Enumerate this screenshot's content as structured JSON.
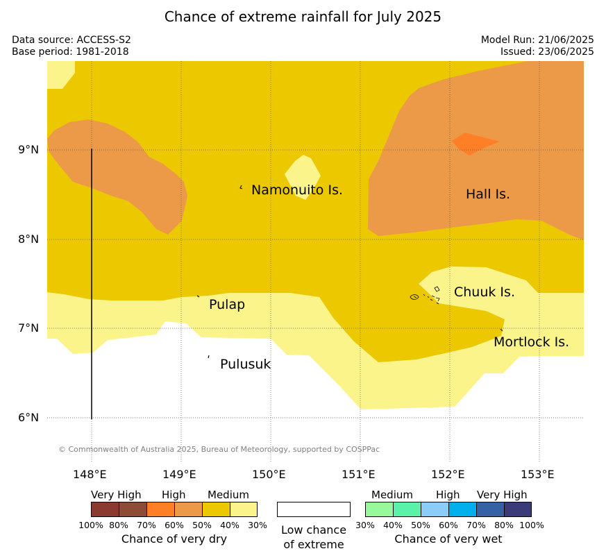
{
  "header": {
    "title": "Chance of extreme rainfall for July 2025",
    "data_source": "Data source: ACCESS-S2",
    "base_period": "Base period: 1981-2018",
    "model_run": "Model Run: 21/06/2025",
    "issued": "Issued: 23/06/2025"
  },
  "map": {
    "lat_ticks": [
      "9°N",
      "8°N",
      "7°N",
      "6°N"
    ],
    "lon_ticks": [
      "148°E",
      "149°E",
      "150°E",
      "151°E",
      "152°E",
      "153°E"
    ],
    "places": {
      "namonuito": "Namonuito Is.",
      "hall": "Hall Is.",
      "pulap": "Pulap",
      "chuuk": "Chuuk Is.",
      "mortlock": "Mortlock Is.",
      "pulusuk": "Pulusuk"
    },
    "copyright": "© Commonwealth of Australia 2025, Bureau of Meteorology, supported by COSPPac",
    "colors": {
      "medium_dry": "#ecc800",
      "low_dry": "#fbf48b",
      "high_dry_light": "#ec9a47",
      "high_dry": "#ff7f27",
      "ocean_nochance": "#ffffff"
    }
  },
  "legend": {
    "dry": {
      "categories": [
        "Very High",
        "High",
        "Medium"
      ],
      "ticks": [
        "100%",
        "80%",
        "70%",
        "60%",
        "50%",
        "40%",
        "30%"
      ],
      "colors": [
        "#8b3a2f",
        "#8c4c35",
        "#ff7f27",
        "#ec9a47",
        "#ecc800",
        "#fbf48b"
      ],
      "caption": "Chance of very dry"
    },
    "low": {
      "caption_line1": "Low chance",
      "caption_line2": "of extreme",
      "color": "#ffffff"
    },
    "wet": {
      "categories": [
        "Medium",
        "High",
        "Very High"
      ],
      "ticks": [
        "30%",
        "40%",
        "50%",
        "60%",
        "70%",
        "80%",
        "100%"
      ],
      "colors": [
        "#98f99a",
        "#5af1a9",
        "#8bcdf8",
        "#00b0ec",
        "#3562a4",
        "#3a3b78"
      ],
      "caption": "Chance of very wet"
    }
  }
}
